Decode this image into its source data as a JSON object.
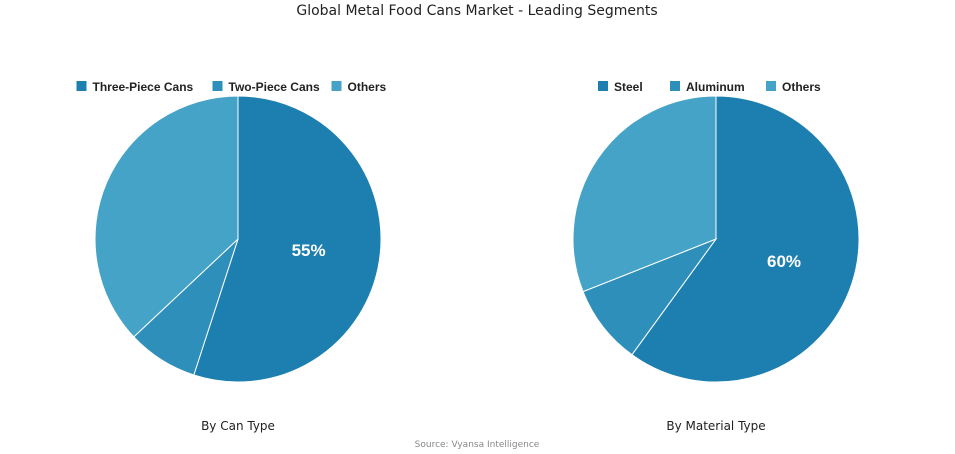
{
  "title": "Global Metal Food Cans Market - Leading Segments",
  "source": "Source: Vyansa Intelligence",
  "colors": [
    "#1c7fb0",
    "#2d8fba",
    "#46a3c8"
  ],
  "chart_data": [
    {
      "type": "pie",
      "title": "By Can Type",
      "categories": [
        "Three-Piece Cans",
        "Two-Piece Cans",
        "Others"
      ],
      "values": [
        55,
        8,
        37
      ],
      "data_labels": [
        "55%",
        "",
        ""
      ],
      "legend": "top"
    },
    {
      "type": "pie",
      "title": "By Material Type",
      "categories": [
        "Steel",
        "Aluminum",
        "Others"
      ],
      "values": [
        60,
        9,
        31
      ],
      "data_labels": [
        "60%",
        "",
        ""
      ],
      "legend": "top"
    }
  ]
}
